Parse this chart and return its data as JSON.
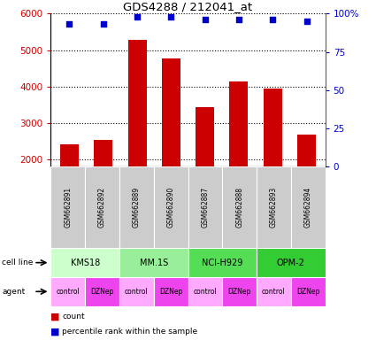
{
  "title": "GDS4288 / 212041_at",
  "samples": [
    "GSM662891",
    "GSM662892",
    "GSM662889",
    "GSM662890",
    "GSM662887",
    "GSM662888",
    "GSM662893",
    "GSM662894"
  ],
  "counts": [
    2420,
    2530,
    5280,
    4760,
    3440,
    4130,
    3950,
    2670
  ],
  "percentile_ranks": [
    93,
    93,
    98,
    98,
    96,
    96,
    96,
    95
  ],
  "cell_lines_data": [
    {
      "name": "KMS18",
      "start": 0,
      "end": 2,
      "color": "#CCFFCC"
    },
    {
      "name": "MM.1S",
      "start": 2,
      "end": 4,
      "color": "#99EE99"
    },
    {
      "name": "NCI-H929",
      "start": 4,
      "end": 6,
      "color": "#55DD55"
    },
    {
      "name": "OPM-2",
      "start": 6,
      "end": 8,
      "color": "#33CC33"
    }
  ],
  "agents": [
    "control",
    "DZNep",
    "control",
    "DZNep",
    "control",
    "DZNep",
    "control",
    "DZNep"
  ],
  "agent_colors": {
    "control": "#FFAAFF",
    "DZNep": "#EE44EE"
  },
  "bar_color": "#CC0000",
  "dot_color": "#0000CC",
  "ylim_left": [
    1800,
    6000
  ],
  "ylim_right": [
    0,
    100
  ],
  "yticks_left": [
    2000,
    3000,
    4000,
    5000,
    6000
  ],
  "yticks_right": [
    0,
    25,
    50,
    75,
    100
  ],
  "ytick_labels_right": [
    "0",
    "25",
    "50",
    "75",
    "100%"
  ],
  "label_color_left": "#CC0000",
  "label_color_right": "#0000CC",
  "header_bg": "#CCCCCC"
}
